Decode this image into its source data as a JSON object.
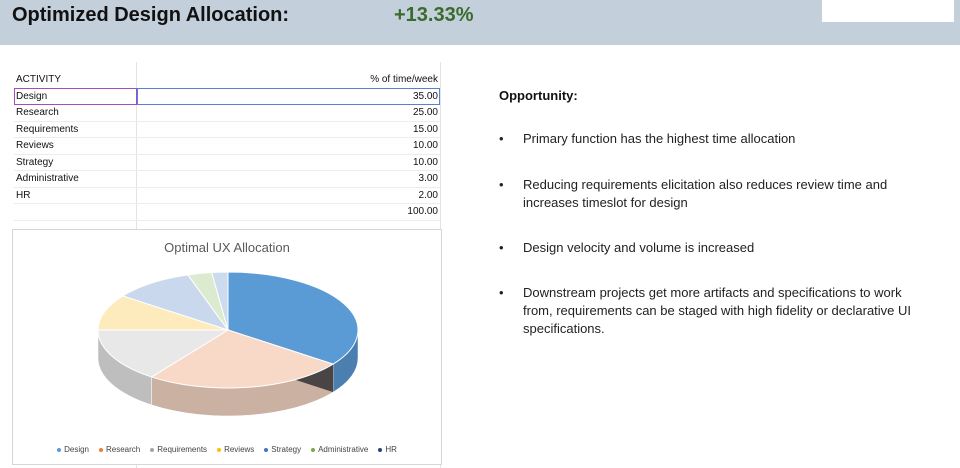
{
  "header": {
    "title": "Optimized Design Allocation:",
    "gain": "+13.33%"
  },
  "table": {
    "col_activity": "ACTIVITY",
    "col_percent": "% of time/week",
    "rows": [
      {
        "activity": "Design",
        "value": "35.00"
      },
      {
        "activity": "Research",
        "value": "25.00"
      },
      {
        "activity": "Requirements",
        "value": "15.00"
      },
      {
        "activity": "Reviews",
        "value": "10.00"
      },
      {
        "activity": "Strategy",
        "value": "10.00"
      },
      {
        "activity": "Administrative",
        "value": "3.00"
      },
      {
        "activity": "HR",
        "value": "2.00"
      }
    ],
    "total": "100.00"
  },
  "chart_data": {
    "type": "pie",
    "title": "Optimal UX Allocation",
    "categories": [
      "Design",
      "Research",
      "Requirements",
      "Reviews",
      "Strategy",
      "Administrative",
      "HR"
    ],
    "values": [
      35,
      25,
      15,
      10,
      10,
      3,
      2
    ],
    "colors": [
      "#5b9bd5",
      "#f8d8c6",
      "#e8e8e8",
      "#fdebbd",
      "#cad8ee",
      "#dcebcf",
      "#ccdcee"
    ],
    "legend_colors": [
      "#5b9bd5",
      "#ed7d31",
      "#a5a5a5",
      "#ffc000",
      "#4472c4",
      "#70ad47",
      "#264478"
    ],
    "legend": "bottom"
  },
  "opportunity": {
    "heading": "Opportunity:",
    "bullets": [
      "Primary function has the highest time allocation",
      "Reducing requirements elicitation also reduces review time and increases timeslot for design",
      "Design velocity and volume is increased",
      "Downstream projects get more artifacts and specifications to work from, requirements can be staged with high fidelity or declarative UI specifications."
    ]
  }
}
